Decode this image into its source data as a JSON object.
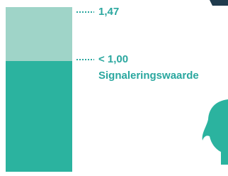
{
  "annotations": [
    {
      "text": "1,47"
    },
    {
      "text": "< 1,00"
    },
    {
      "text": "Signaleringswaarde"
    }
  ]
}
